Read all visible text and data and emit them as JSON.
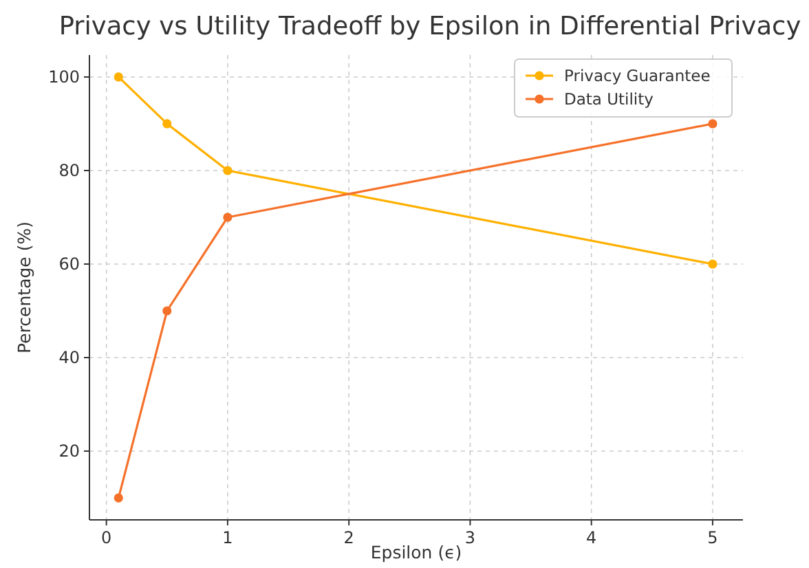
{
  "chart_data": {
    "type": "line",
    "title": "Privacy vs Utility Tradeoff by Epsilon in Differential Privacy",
    "xlabel": "Epsilon (ϵ)",
    "ylabel": "Percentage (%)",
    "x": [
      0.1,
      0.5,
      1,
      5
    ],
    "series": [
      {
        "name": "Privacy Guarantee",
        "color": "#ffb000",
        "values": [
          100,
          90,
          80,
          60
        ]
      },
      {
        "name": "Data Utility",
        "color": "#f5712a",
        "values": [
          10,
          50,
          70,
          90
        ]
      }
    ],
    "xlim": [
      -0.14,
      5.25
    ],
    "xticks": [
      0,
      1,
      2,
      3,
      4,
      5
    ],
    "ylim": [
      5.3,
      104.7
    ],
    "yticks": [
      20,
      40,
      60,
      80,
      100
    ],
    "grid": true,
    "legend": "top right",
    "marker": "circle",
    "line_style": "solid"
  }
}
